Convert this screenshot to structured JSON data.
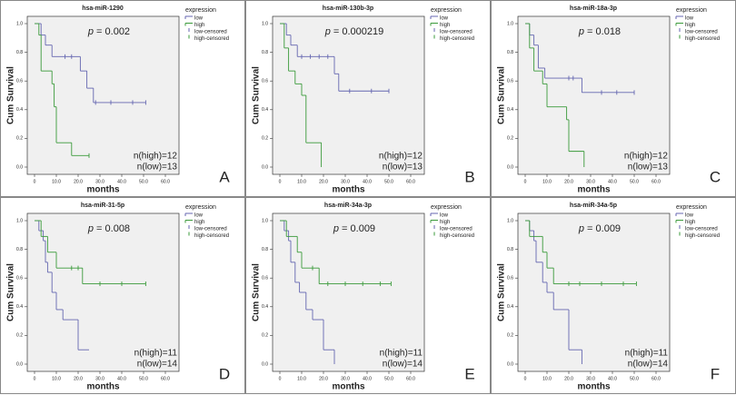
{
  "chart_data": [
    {
      "type": "line",
      "panel": "A",
      "title": "hsa-miR-1290",
      "p_label": "p",
      "p_value": "= 0.002",
      "xlabel": "months",
      "ylabel": "Cum Survival",
      "legend_title": "expression",
      "xlim": [
        0,
        60
      ],
      "ylim": [
        0,
        1
      ],
      "xticks": [
        0,
        {
          "value": 10,
          "label": "10.0"
        },
        {
          "value": 20,
          "label": "20.0"
        },
        {
          "value": 30,
          "label": "30.0"
        },
        {
          "value": 40,
          "label": "40.0"
        },
        {
          "value": 50,
          "label": "50.0"
        },
        {
          "value": 60,
          "label": "60.0"
        }
      ],
      "yticks": [
        {
          "value": 0,
          "label": "0.0"
        },
        0.2,
        0.4,
        0.6,
        0.8,
        {
          "value": 1,
          "label": "1.0"
        }
      ],
      "series": [
        {
          "name": "low",
          "color": "#6466b0",
          "style": "step",
          "x": [
            0,
            3,
            5,
            8,
            15,
            21,
            24,
            27,
            51
          ],
          "values": [
            1,
            0.92,
            0.85,
            0.77,
            0.77,
            0.67,
            0.55,
            0.45,
            0.45
          ]
        },
        {
          "name": "high",
          "color": "#3a9a3a",
          "style": "step",
          "x": [
            0,
            2,
            3,
            8,
            9,
            10,
            17,
            25
          ],
          "values": [
            1,
            0.92,
            0.67,
            0.58,
            0.42,
            0.17,
            0.08,
            0.08
          ]
        },
        {
          "name": "low-censored",
          "color": "#6466b0",
          "style": "censored",
          "x": [
            14,
            17,
            28,
            35,
            45,
            51
          ],
          "values": [
            0.77,
            0.77,
            0.45,
            0.45,
            0.45,
            0.45
          ]
        },
        {
          "name": "high-censored",
          "color": "#3a9a3a",
          "style": "censored",
          "x": [
            25
          ],
          "values": [
            0.08
          ]
        }
      ],
      "annotations": [
        "n(high)=12",
        "n(low)=13"
      ]
    },
    {
      "type": "line",
      "panel": "B",
      "title": "hsa-miR-130b-3p",
      "p_label": "p",
      "p_value": "= 0.000219",
      "xlabel": "months",
      "ylabel": "Cum Survival",
      "legend_title": "expression",
      "xlim": [
        0,
        60
      ],
      "ylim": [
        0,
        1
      ],
      "xticks": [
        0,
        {
          "value": 10,
          "label": "10.0"
        },
        {
          "value": 20,
          "label": "20.0"
        },
        {
          "value": 30,
          "label": "30.0"
        },
        {
          "value": 40,
          "label": "40.0"
        },
        {
          "value": 50,
          "label": "50.0"
        },
        {
          "value": 60,
          "label": "60.0"
        }
      ],
      "yticks": [
        {
          "value": 0,
          "label": "0.0"
        },
        0.2,
        0.4,
        0.6,
        0.8,
        {
          "value": 1,
          "label": "1.0"
        }
      ],
      "series": [
        {
          "name": "low",
          "color": "#6466b0",
          "style": "step",
          "x": [
            0,
            3,
            5,
            8,
            25,
            27,
            50
          ],
          "values": [
            1,
            0.92,
            0.85,
            0.77,
            0.65,
            0.53,
            0.53
          ]
        },
        {
          "name": "high",
          "color": "#3a9a3a",
          "style": "step",
          "x": [
            0,
            2,
            4,
            7,
            10,
            12,
            19
          ],
          "values": [
            1,
            0.83,
            0.67,
            0.58,
            0.5,
            0.17,
            0
          ]
        },
        {
          "name": "low-censored",
          "color": "#6466b0",
          "style": "censored",
          "x": [
            10,
            14,
            18,
            22,
            32,
            42,
            50
          ],
          "values": [
            0.77,
            0.77,
            0.77,
            0.77,
            0.53,
            0.53,
            0.53
          ]
        },
        {
          "name": "high-censored",
          "color": "#3a9a3a",
          "style": "censored",
          "x": [],
          "values": []
        }
      ],
      "annotations": [
        "n(high)=12",
        "n(low)=13"
      ]
    },
    {
      "type": "line",
      "panel": "C",
      "title": "hsa-miR-18a-3p",
      "p_label": "p",
      "p_value": "= 0.018",
      "xlabel": "months",
      "ylabel": "Cum Survival",
      "legend_title": "expression",
      "xlim": [
        0,
        60
      ],
      "ylim": [
        0,
        1
      ],
      "xticks": [
        0,
        {
          "value": 10,
          "label": "10.0"
        },
        {
          "value": 20,
          "label": "20.0"
        },
        {
          "value": 30,
          "label": "30.0"
        },
        {
          "value": 40,
          "label": "40.0"
        },
        {
          "value": 50,
          "label": "50.0"
        },
        {
          "value": 60,
          "label": "60.0"
        }
      ],
      "yticks": [
        {
          "value": 0,
          "label": "0.0"
        },
        0.2,
        0.4,
        0.6,
        0.8,
        {
          "value": 1,
          "label": "1.0"
        }
      ],
      "series": [
        {
          "name": "low",
          "color": "#6466b0",
          "style": "step",
          "x": [
            0,
            2,
            4,
            6,
            9,
            26,
            50
          ],
          "values": [
            1,
            0.92,
            0.85,
            0.69,
            0.62,
            0.52,
            0.52
          ]
        },
        {
          "name": "high",
          "color": "#3a9a3a",
          "style": "step",
          "x": [
            0,
            2,
            4,
            8,
            10,
            19,
            20,
            27
          ],
          "values": [
            1,
            0.83,
            0.67,
            0.58,
            0.42,
            0.33,
            0.11,
            0
          ]
        },
        {
          "name": "low-censored",
          "color": "#6466b0",
          "style": "censored",
          "x": [
            20,
            22,
            35,
            42,
            50
          ],
          "values": [
            0.62,
            0.62,
            0.52,
            0.52,
            0.52
          ]
        },
        {
          "name": "high-censored",
          "color": "#3a9a3a",
          "style": "censored",
          "x": [],
          "values": []
        }
      ],
      "annotations": [
        "n(high)=12",
        "n(low)=13"
      ]
    },
    {
      "type": "line",
      "panel": "D",
      "title": "hsa-miR-31-5p",
      "p_label": "p",
      "p_value": "= 0.008",
      "xlabel": "months",
      "ylabel": "Cum Survival",
      "legend_title": "expression",
      "xlim": [
        0,
        60
      ],
      "ylim": [
        0,
        1
      ],
      "xticks": [
        0,
        {
          "value": 10,
          "label": "10.0"
        },
        {
          "value": 20,
          "label": "20.0"
        },
        {
          "value": 30,
          "label": "30.0"
        },
        {
          "value": 40,
          "label": "40.0"
        },
        {
          "value": 50,
          "label": "50.0"
        },
        {
          "value": 60,
          "label": "60.0"
        }
      ],
      "yticks": [
        {
          "value": 0,
          "label": "0.0"
        },
        0.2,
        0.4,
        0.6,
        0.8,
        {
          "value": 1,
          "label": "1.0"
        }
      ],
      "series": [
        {
          "name": "low",
          "color": "#6466b0",
          "style": "step",
          "x": [
            0,
            2,
            4,
            5,
            6,
            8,
            10,
            13,
            20,
            25
          ],
          "values": [
            1,
            0.93,
            0.86,
            0.71,
            0.64,
            0.5,
            0.38,
            0.31,
            0.1,
            0.1
          ]
        },
        {
          "name": "high",
          "color": "#3a9a3a",
          "style": "step",
          "x": [
            0,
            3,
            6,
            10,
            22,
            51
          ],
          "values": [
            1,
            0.89,
            0.78,
            0.67,
            0.56,
            0.56
          ]
        },
        {
          "name": "low-censored",
          "color": "#6466b0",
          "style": "censored",
          "x": [],
          "values": []
        },
        {
          "name": "high-censored",
          "color": "#3a9a3a",
          "style": "censored",
          "x": [
            17,
            20,
            30,
            40,
            51
          ],
          "values": [
            0.67,
            0.67,
            0.56,
            0.56,
            0.56
          ]
        }
      ],
      "annotations": [
        "n(high)=11",
        "n(low)=14"
      ]
    },
    {
      "type": "line",
      "panel": "E",
      "title": "hsa-miR-34a-3p",
      "p_label": "p",
      "p_value": "= 0.009",
      "xlabel": "months",
      "ylabel": "Cum Survival",
      "legend_title": "expression",
      "xlim": [
        0,
        60
      ],
      "ylim": [
        0,
        1
      ],
      "xticks": [
        0,
        {
          "value": 10,
          "label": "10.0"
        },
        {
          "value": 20,
          "label": "20.0"
        },
        {
          "value": 30,
          "label": "30.0"
        },
        {
          "value": 40,
          "label": "40.0"
        },
        {
          "value": 50,
          "label": "50.0"
        },
        {
          "value": 60,
          "label": "60.0"
        }
      ],
      "yticks": [
        {
          "value": 0,
          "label": "0.0"
        },
        0.2,
        0.4,
        0.6,
        0.8,
        {
          "value": 1,
          "label": "1.0"
        }
      ],
      "series": [
        {
          "name": "low",
          "color": "#6466b0",
          "style": "step",
          "x": [
            0,
            2,
            4,
            5,
            7,
            9,
            12,
            15,
            20,
            25
          ],
          "values": [
            1,
            0.93,
            0.86,
            0.71,
            0.57,
            0.5,
            0.38,
            0.31,
            0.1,
            0
          ]
        },
        {
          "name": "high",
          "color": "#3a9a3a",
          "style": "step",
          "x": [
            0,
            3,
            8,
            10,
            18,
            51
          ],
          "values": [
            1,
            0.89,
            0.78,
            0.67,
            0.56,
            0.56
          ]
        },
        {
          "name": "low-censored",
          "color": "#6466b0",
          "style": "censored",
          "x": [],
          "values": []
        },
        {
          "name": "high-censored",
          "color": "#3a9a3a",
          "style": "censored",
          "x": [
            15,
            22,
            30,
            38,
            46,
            51
          ],
          "values": [
            0.67,
            0.56,
            0.56,
            0.56,
            0.56,
            0.56
          ]
        }
      ],
      "annotations": [
        "n(high)=11",
        "n(low)=14"
      ]
    },
    {
      "type": "line",
      "panel": "F",
      "title": "hsa-miR-34a-5p",
      "p_label": "p",
      "p_value": "= 0.009",
      "xlabel": "months",
      "ylabel": "Cum Survival",
      "legend_title": "expression",
      "xlim": [
        0,
        60
      ],
      "ylim": [
        0,
        1
      ],
      "xticks": [
        0,
        {
          "value": 10,
          "label": "10.0"
        },
        {
          "value": 20,
          "label": "20.0"
        },
        {
          "value": 30,
          "label": "30.0"
        },
        {
          "value": 40,
          "label": "40.0"
        },
        {
          "value": 50,
          "label": "50.0"
        },
        {
          "value": 60,
          "label": "60.0"
        }
      ],
      "yticks": [
        {
          "value": 0,
          "label": "0.0"
        },
        0.2,
        0.4,
        0.6,
        0.8,
        {
          "value": 1,
          "label": "1.0"
        }
      ],
      "series": [
        {
          "name": "low",
          "color": "#6466b0",
          "style": "step",
          "x": [
            0,
            2,
            4,
            5,
            8,
            10,
            13,
            20,
            26
          ],
          "values": [
            1,
            0.93,
            0.86,
            0.71,
            0.57,
            0.5,
            0.38,
            0.1,
            0
          ]
        },
        {
          "name": "high",
          "color": "#3a9a3a",
          "style": "step",
          "x": [
            0,
            2,
            8,
            10,
            13,
            51
          ],
          "values": [
            1,
            0.89,
            0.78,
            0.67,
            0.56,
            0.56
          ]
        },
        {
          "name": "low-censored",
          "color": "#6466b0",
          "style": "censored",
          "x": [],
          "values": []
        },
        {
          "name": "high-censored",
          "color": "#3a9a3a",
          "style": "censored",
          "x": [
            20,
            25,
            35,
            45,
            51
          ],
          "values": [
            0.56,
            0.56,
            0.56,
            0.56,
            0.56
          ]
        }
      ],
      "annotations": [
        "n(high)=11",
        "n(low)=14"
      ]
    }
  ]
}
